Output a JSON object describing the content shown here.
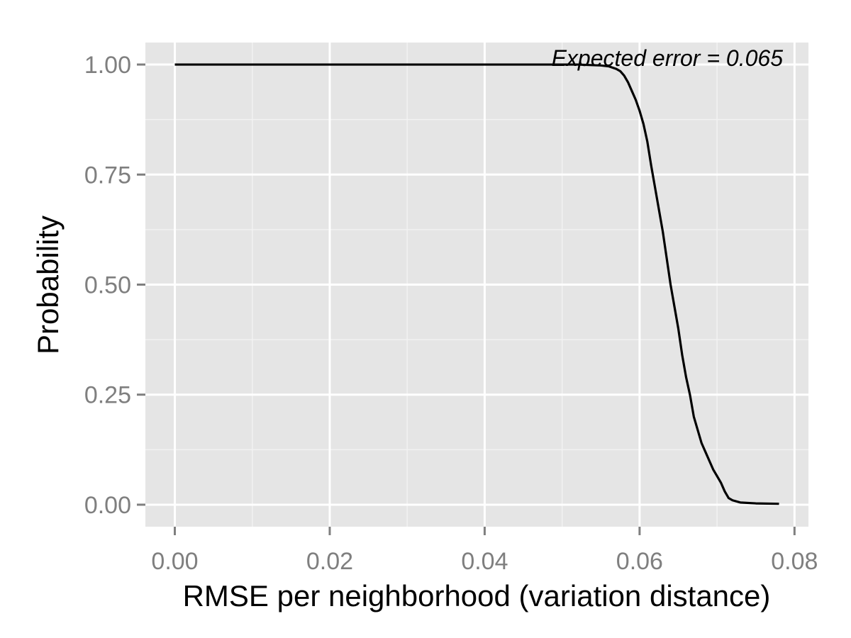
{
  "chart_data": {
    "type": "line",
    "title": "",
    "xlabel": "RMSE per neighborhood (variation distance)",
    "ylabel": "Probability",
    "xlim": [
      -0.0038,
      0.0818
    ],
    "ylim": [
      -0.05,
      1.05
    ],
    "x_ticks": [
      0.0,
      0.02,
      0.04,
      0.06,
      0.08
    ],
    "x_tick_labels": [
      "0.00",
      "0.02",
      "0.04",
      "0.06",
      "0.08"
    ],
    "y_ticks": [
      0.0,
      0.25,
      0.5,
      0.75,
      1.0
    ],
    "y_tick_labels": [
      "0.00",
      "0.25",
      "0.50",
      "0.75",
      "1.00"
    ],
    "grid": true,
    "annotation": "Expected error = 0.065",
    "series": [
      {
        "x": [
          0.0,
          0.045,
          0.052,
          0.055,
          0.056,
          0.0565,
          0.057,
          0.0575,
          0.058,
          0.0585,
          0.059,
          0.0595,
          0.06,
          0.0605,
          0.061,
          0.0615,
          0.062,
          0.0625,
          0.063,
          0.0635,
          0.064,
          0.0645,
          0.065,
          0.0655,
          0.066,
          0.0665,
          0.067,
          0.0675,
          0.068,
          0.0685,
          0.069,
          0.0695,
          0.07,
          0.0705,
          0.071,
          0.0715,
          0.072,
          0.073,
          0.075,
          0.078
        ],
        "y": [
          1.0,
          1.0,
          1.0,
          0.998,
          0.996,
          0.993,
          0.99,
          0.985,
          0.975,
          0.96,
          0.94,
          0.92,
          0.895,
          0.865,
          0.825,
          0.77,
          0.72,
          0.67,
          0.62,
          0.56,
          0.5,
          0.45,
          0.4,
          0.34,
          0.29,
          0.25,
          0.2,
          0.17,
          0.14,
          0.12,
          0.1,
          0.08,
          0.065,
          0.05,
          0.03,
          0.015,
          0.01,
          0.005,
          0.003,
          0.002
        ],
        "color": "#000000"
      }
    ],
    "colors": {
      "panel_background": "#e5e5e5",
      "grid_major": "#ffffff",
      "grid_minor": "#f2f2f2",
      "tick_label": "#7f7f7f",
      "tick_mark": "#7f7f7f"
    }
  }
}
